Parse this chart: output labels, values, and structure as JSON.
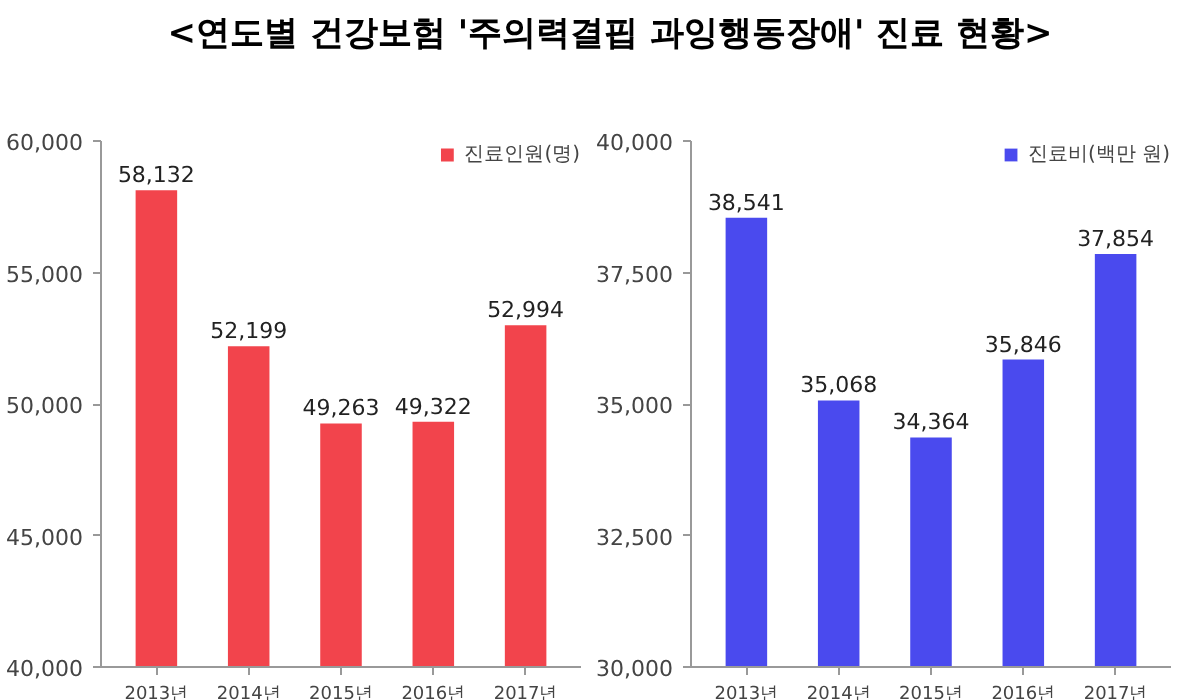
{
  "chart_data": [
    {
      "type": "bar",
      "title": "<연도별 건강보험 '주의력결핍 과잉행동장애' 진료 현황>",
      "categories": [
        "2013년",
        "2014년",
        "2015년",
        "2016년",
        "2017년"
      ],
      "series": [
        {
          "name": "진료인원(명)",
          "color": "#f2444c",
          "values": [
            58132,
            52199,
            49263,
            49322,
            52994
          ],
          "value_labels": [
            "58,132",
            "52,199",
            "49,263",
            "49,322",
            "52,994"
          ]
        }
      ],
      "ylim": [
        40000,
        60000
      ],
      "yticks": [
        {
          "value": 40000,
          "label": "40,000"
        },
        {
          "value": 45000,
          "label": "45,000"
        },
        {
          "value": 50000,
          "label": "50,000"
        },
        {
          "value": 55000,
          "label": "55,000"
        },
        {
          "value": 60000,
          "label": "60,000"
        }
      ],
      "legend": "top right",
      "grid": false
    },
    {
      "type": "bar",
      "categories": [
        "2013년",
        "2014년",
        "2015년",
        "2016년",
        "2017년"
      ],
      "series": [
        {
          "name": "진료비(백만 원)",
          "color": "#4a4aee",
          "values": [
            38541,
            35068,
            34364,
            35846,
            37854
          ],
          "value_labels": [
            "38,541",
            "35,068",
            "34,364",
            "35,846",
            "37,854"
          ]
        }
      ],
      "ylim": [
        30000,
        40000
      ],
      "yticks": [
        {
          "value": 30000,
          "label": "30,000"
        },
        {
          "value": 32500,
          "label": "32,500"
        },
        {
          "value": 35000,
          "label": "35,000"
        },
        {
          "value": 37500,
          "label": "37,500"
        },
        {
          "value": 40000,
          "label": "40,000"
        }
      ],
      "legend": "top right",
      "grid": false
    }
  ]
}
